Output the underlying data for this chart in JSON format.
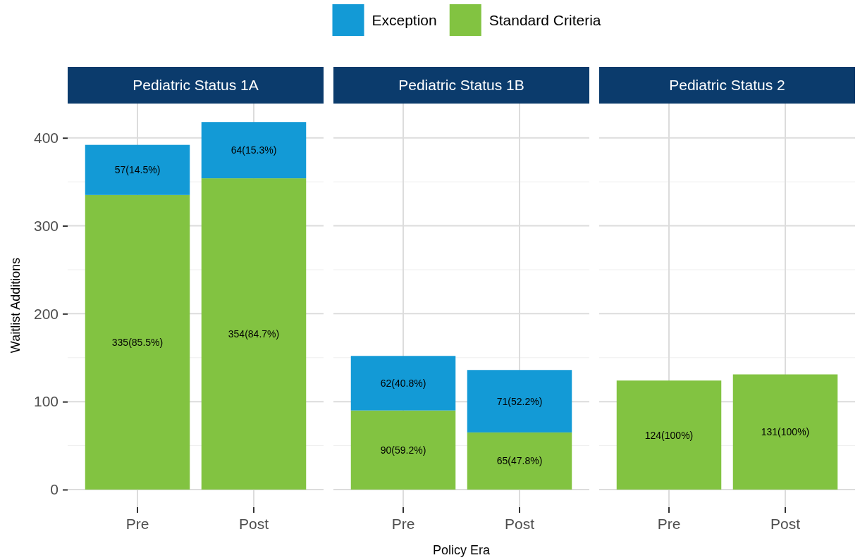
{
  "chart_data": [
    {
      "type": "bar",
      "title": "Pediatric Status 1A",
      "ylabel": "Waitlist Additions",
      "categories": [
        "Pre",
        "Post"
      ],
      "stacked": true,
      "grid": true,
      "legend": "top",
      "ylim": [
        -20,
        439
      ],
      "yticks": [
        0,
        {
          "value": 50,
          "label": null
        },
        100,
        {
          "value": 150,
          "label": null
        },
        200,
        {
          "value": 250,
          "label": null
        },
        300,
        {
          "value": 350,
          "label": null
        },
        400
      ],
      "series": [
        {
          "name": "Standard Criteria",
          "color": "#82c341",
          "values": [
            335,
            354
          ],
          "value_labels": [
            "335(85.5%)",
            "354(84.7%)"
          ]
        },
        {
          "name": "Exception",
          "color": "#139ad6",
          "values": [
            57,
            64
          ],
          "value_labels": [
            "57(14.5%)",
            "64(15.3%)"
          ]
        }
      ]
    },
    {
      "type": "bar",
      "title": "Pediatric Status 1B",
      "xlabel": "Policy Era",
      "categories": [
        "Pre",
        "Post"
      ],
      "stacked": true,
      "grid": true,
      "tick_labels": "x",
      "ylim": [
        -20,
        439
      ],
      "yticks": [
        0,
        {
          "value": 50,
          "label": null
        },
        100,
        {
          "value": 150,
          "label": null
        },
        200,
        {
          "value": 250,
          "label": null
        },
        300,
        {
          "value": 350,
          "label": null
        },
        400
      ],
      "series": [
        {
          "color": "#82c341",
          "values": [
            90,
            65
          ],
          "value_labels": [
            "90(59.2%)",
            "65(47.8%)"
          ]
        },
        {
          "color": "#139ad6",
          "values": [
            62,
            71
          ],
          "value_labels": [
            "62(40.8%)",
            "71(52.2%)"
          ]
        }
      ]
    },
    {
      "type": "bar",
      "title": "Pediatric Status 2",
      "categories": [
        "Pre",
        "Post"
      ],
      "stacked": true,
      "grid": true,
      "tick_labels": "x",
      "ylim": [
        -20,
        439
      ],
      "yticks": [
        0,
        {
          "value": 50,
          "label": null
        },
        100,
        {
          "value": 150,
          "label": null
        },
        200,
        {
          "value": 250,
          "label": null
        },
        300,
        {
          "value": 350,
          "label": null
        },
        400
      ],
      "series": [
        {
          "color": "#82c341",
          "values": [
            124,
            131
          ],
          "value_labels": [
            "124(100%)",
            "131(100%)"
          ]
        }
      ]
    }
  ]
}
